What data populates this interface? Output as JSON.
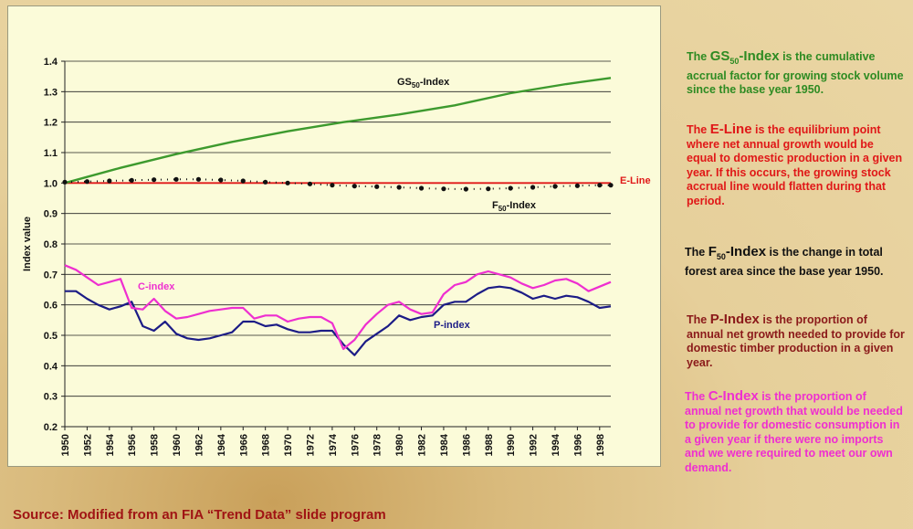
{
  "chart_data": {
    "type": "line",
    "ylabel": "Index value",
    "ylim": [
      0.2,
      1.4
    ],
    "yticks": [
      "0.2",
      "0.3",
      "0.4",
      "0.5",
      "0.6",
      "0.7",
      "0.8",
      "0.9",
      "1.0",
      "1.1",
      "1.2",
      "1.3",
      "1.4"
    ],
    "xticks": [
      "1950",
      "1952",
      "1954",
      "1956",
      "1958",
      "1960",
      "1962",
      "1964",
      "1966",
      "1968",
      "1970",
      "1972",
      "1974",
      "1976",
      "1978",
      "1980",
      "1982",
      "1984",
      "1986",
      "1988",
      "1990",
      "1992",
      "1994",
      "1996",
      "1998"
    ],
    "x_start": 1950,
    "x_end": 1999,
    "grid": "horizontal",
    "series": [
      {
        "name": "GS50-Index",
        "label_main": "GS",
        "label_sub": "50",
        "label_tail": "-Index",
        "color": "#3d9a2e",
        "x": [
          1950,
          1955,
          1960,
          1965,
          1970,
          1975,
          1980,
          1985,
          1990,
          1995,
          1999
        ],
        "values": [
          1.0,
          1.05,
          1.095,
          1.135,
          1.17,
          1.2,
          1.225,
          1.255,
          1.295,
          1.325,
          1.345
        ]
      },
      {
        "name": "E-Line",
        "label_main": "E-Line",
        "color": "#e01818",
        "x": [
          1950,
          1999
        ],
        "values": [
          1.0,
          1.0
        ]
      },
      {
        "name": "F50-Index",
        "label_main": "F",
        "label_sub": "50",
        "label_tail": "-Index",
        "color": "#111111",
        "x": [
          1950,
          1952,
          1954,
          1956,
          1958,
          1960,
          1962,
          1964,
          1966,
          1968,
          1970,
          1972,
          1974,
          1976,
          1978,
          1980,
          1982,
          1984,
          1986,
          1988,
          1990,
          1992,
          1994,
          1996,
          1998,
          1999
        ],
        "values": [
          1.003,
          1.005,
          1.007,
          1.009,
          1.011,
          1.012,
          1.012,
          1.01,
          1.007,
          1.003,
          1.0,
          0.997,
          0.993,
          0.99,
          0.988,
          0.986,
          0.983,
          0.981,
          0.98,
          0.981,
          0.983,
          0.986,
          0.989,
          0.991,
          0.993,
          0.993
        ]
      },
      {
        "name": "P-index",
        "label_main": "P-index",
        "color": "#1c1c86",
        "x": [
          1950,
          1951,
          1952,
          1953,
          1954,
          1955,
          1956,
          1957,
          1958,
          1959,
          1960,
          1961,
          1962,
          1963,
          1964,
          1965,
          1966,
          1967,
          1968,
          1969,
          1970,
          1971,
          1972,
          1973,
          1974,
          1975,
          1976,
          1977,
          1978,
          1979,
          1980,
          1981,
          1982,
          1983,
          1984,
          1985,
          1986,
          1987,
          1988,
          1989,
          1990,
          1991,
          1992,
          1993,
          1994,
          1995,
          1996,
          1997,
          1998,
          1999
        ],
        "values": [
          0.645,
          0.645,
          0.62,
          0.6,
          0.585,
          0.595,
          0.61,
          0.53,
          0.515,
          0.545,
          0.505,
          0.49,
          0.485,
          0.49,
          0.5,
          0.51,
          0.545,
          0.545,
          0.53,
          0.535,
          0.52,
          0.51,
          0.51,
          0.515,
          0.515,
          0.47,
          0.435,
          0.48,
          0.505,
          0.53,
          0.565,
          0.55,
          0.56,
          0.565,
          0.6,
          0.61,
          0.61,
          0.635,
          0.655,
          0.66,
          0.655,
          0.64,
          0.62,
          0.63,
          0.62,
          0.63,
          0.625,
          0.61,
          0.59,
          0.595
        ]
      },
      {
        "name": "C-index",
        "label_main": "C-index",
        "color": "#ee2fd0",
        "x": [
          1950,
          1951,
          1952,
          1953,
          1954,
          1955,
          1956,
          1957,
          1958,
          1959,
          1960,
          1961,
          1962,
          1963,
          1964,
          1965,
          1966,
          1967,
          1968,
          1969,
          1970,
          1971,
          1972,
          1973,
          1974,
          1975,
          1976,
          1977,
          1978,
          1979,
          1980,
          1981,
          1982,
          1983,
          1984,
          1985,
          1986,
          1987,
          1988,
          1989,
          1990,
          1991,
          1992,
          1993,
          1994,
          1995,
          1996,
          1997,
          1998,
          1999
        ],
        "values": [
          0.73,
          0.715,
          0.69,
          0.665,
          0.675,
          0.685,
          0.59,
          0.585,
          0.62,
          0.58,
          0.555,
          0.56,
          0.57,
          0.58,
          0.585,
          0.59,
          0.59,
          0.555,
          0.565,
          0.565,
          0.545,
          0.555,
          0.56,
          0.56,
          0.54,
          0.455,
          0.485,
          0.535,
          0.57,
          0.6,
          0.61,
          0.585,
          0.57,
          0.575,
          0.635,
          0.665,
          0.675,
          0.7,
          0.71,
          0.7,
          0.69,
          0.67,
          0.655,
          0.665,
          0.68,
          0.685,
          0.67,
          0.645,
          0.66,
          0.675
        ]
      }
    ]
  },
  "notes": {
    "gs": {
      "lead": "The ",
      "term": "GS",
      "term_sub": "50",
      "term_tail": "-Index",
      "body": " is the cumulative accrual factor for growing stock volume since the base year 1950."
    },
    "e": {
      "lead": "The ",
      "term": "E-Line",
      "body": " is the equilibrium point where net annual growth would be equal to domestic production in a given year. If this occurs, the growing stock accrual line would flatten during that period."
    },
    "f": {
      "lead": "The ",
      "term": "F",
      "term_sub": "50",
      "term_tail": "-Index",
      "body": " is the change in total forest area since the base year 1950."
    },
    "p": {
      "lead": "The ",
      "term": "P-Index",
      "body": " is the proportion of annual net growth needed to provide for domestic timber production in a given year."
    },
    "c": {
      "lead": "The ",
      "term": "C-Index",
      "body": " is the proportion of annual net growth that would be needed to provide for domestic consumption in a given year if there were no imports and we were required to meet our own demand."
    }
  },
  "source": "Source: Modified from an FIA “Trend Data” slide program"
}
